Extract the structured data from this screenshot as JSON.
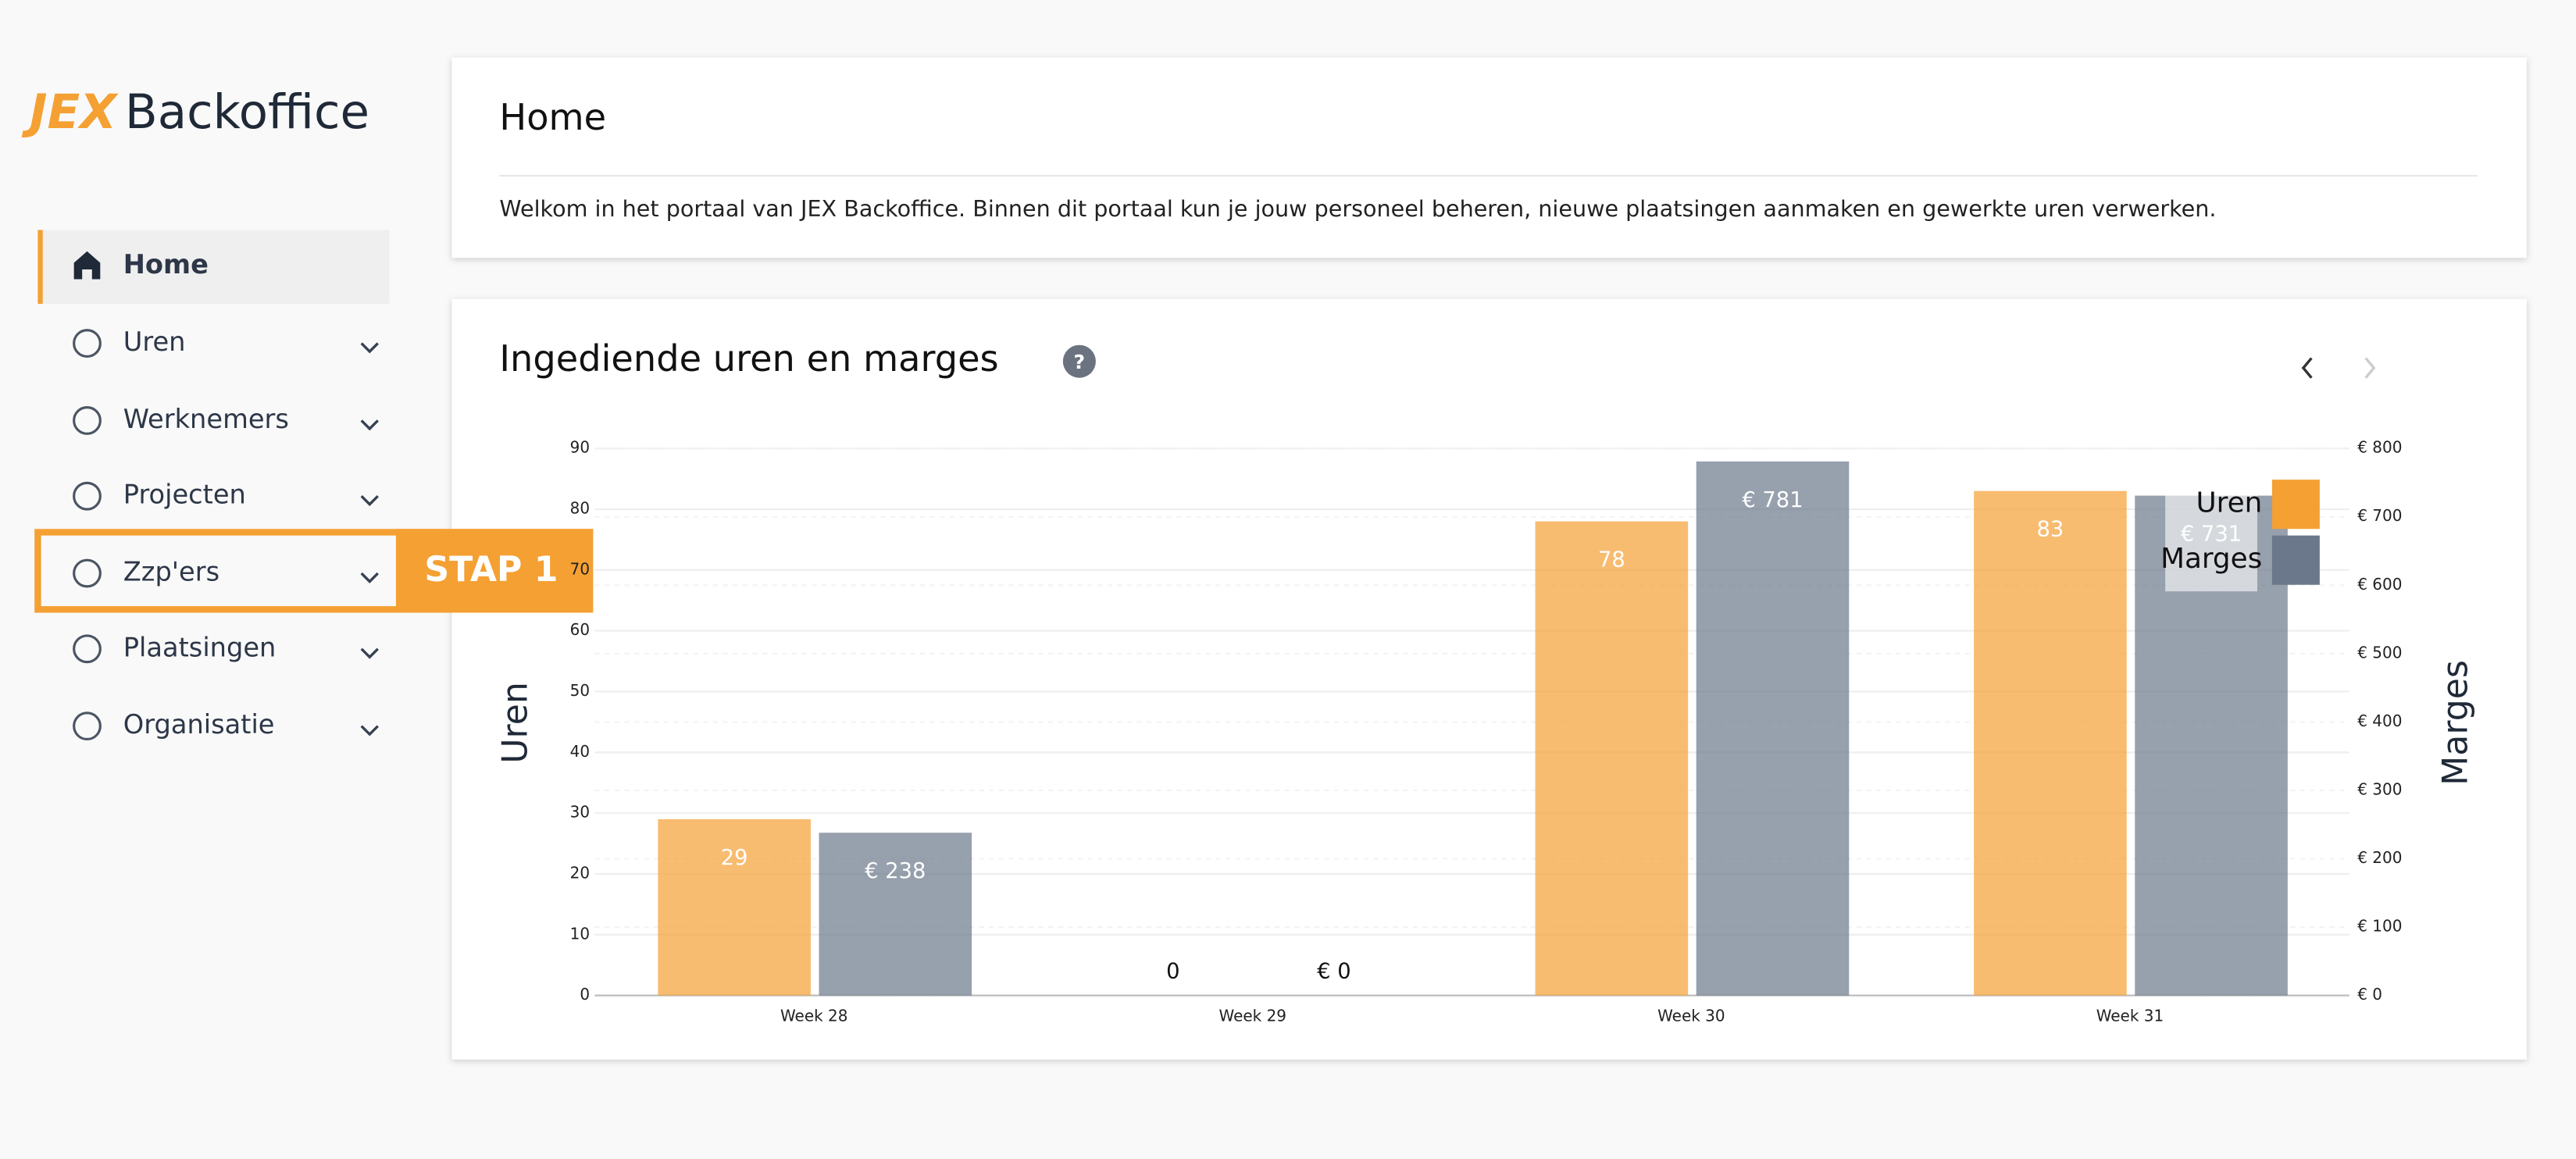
{
  "logo": {
    "brand": "JEX",
    "product": "Backoffice"
  },
  "sidebar": {
    "items": [
      "Home",
      "Uren",
      "Werknemers",
      "Projecten",
      "Zzp'ers",
      "Plaatsingen",
      "Organisatie"
    ],
    "active": 0
  },
  "annotation": "STAP 1",
  "header": {
    "title": "Home",
    "text": "Welkom in het portaal van JEX Backoffice. Binnen dit portaal kun je jouw personeel beheren, nieuwe plaatsingen aanmaken en gewerkte uren verwerken."
  },
  "chart_data": {
    "type": "bar",
    "title": "Ingediende uren en marges",
    "help_icon": "?",
    "categories": [
      "Week 28",
      "Week 29",
      "Week 30",
      "Week 31"
    ],
    "series": [
      {
        "name": "Uren",
        "color": "#f5a033",
        "values": [
          29,
          0,
          78,
          83
        ]
      },
      {
        "name": "Marges",
        "color": "#6b778a",
        "axis": "y2",
        "values": [
          238,
          0,
          781,
          731
        ],
        "value_labels": [
          "€ 238",
          "€ 0",
          "€ 781",
          "€ 731"
        ]
      }
    ],
    "ylabel": "Uren",
    "y2label": "Marges",
    "ylim": [
      0,
      90
    ],
    "yticks": [
      0,
      10,
      20,
      30,
      40,
      50,
      60,
      70,
      80,
      90
    ],
    "y2lim": [
      0,
      800
    ],
    "y2ticks": [
      {
        "value": 0,
        "label": "€ 0"
      },
      {
        "value": 100,
        "label": "€ 100"
      },
      {
        "value": 200,
        "label": "€ 200"
      },
      {
        "value": 300,
        "label": "€ 300"
      },
      {
        "value": 400,
        "label": "€ 400"
      },
      {
        "value": 500,
        "label": "€ 500"
      },
      {
        "value": 600,
        "label": "€ 600"
      },
      {
        "value": 700,
        "label": "€ 700"
      },
      {
        "value": 800,
        "label": "€ 800"
      }
    ],
    "grid": true,
    "legend": "top-right"
  }
}
